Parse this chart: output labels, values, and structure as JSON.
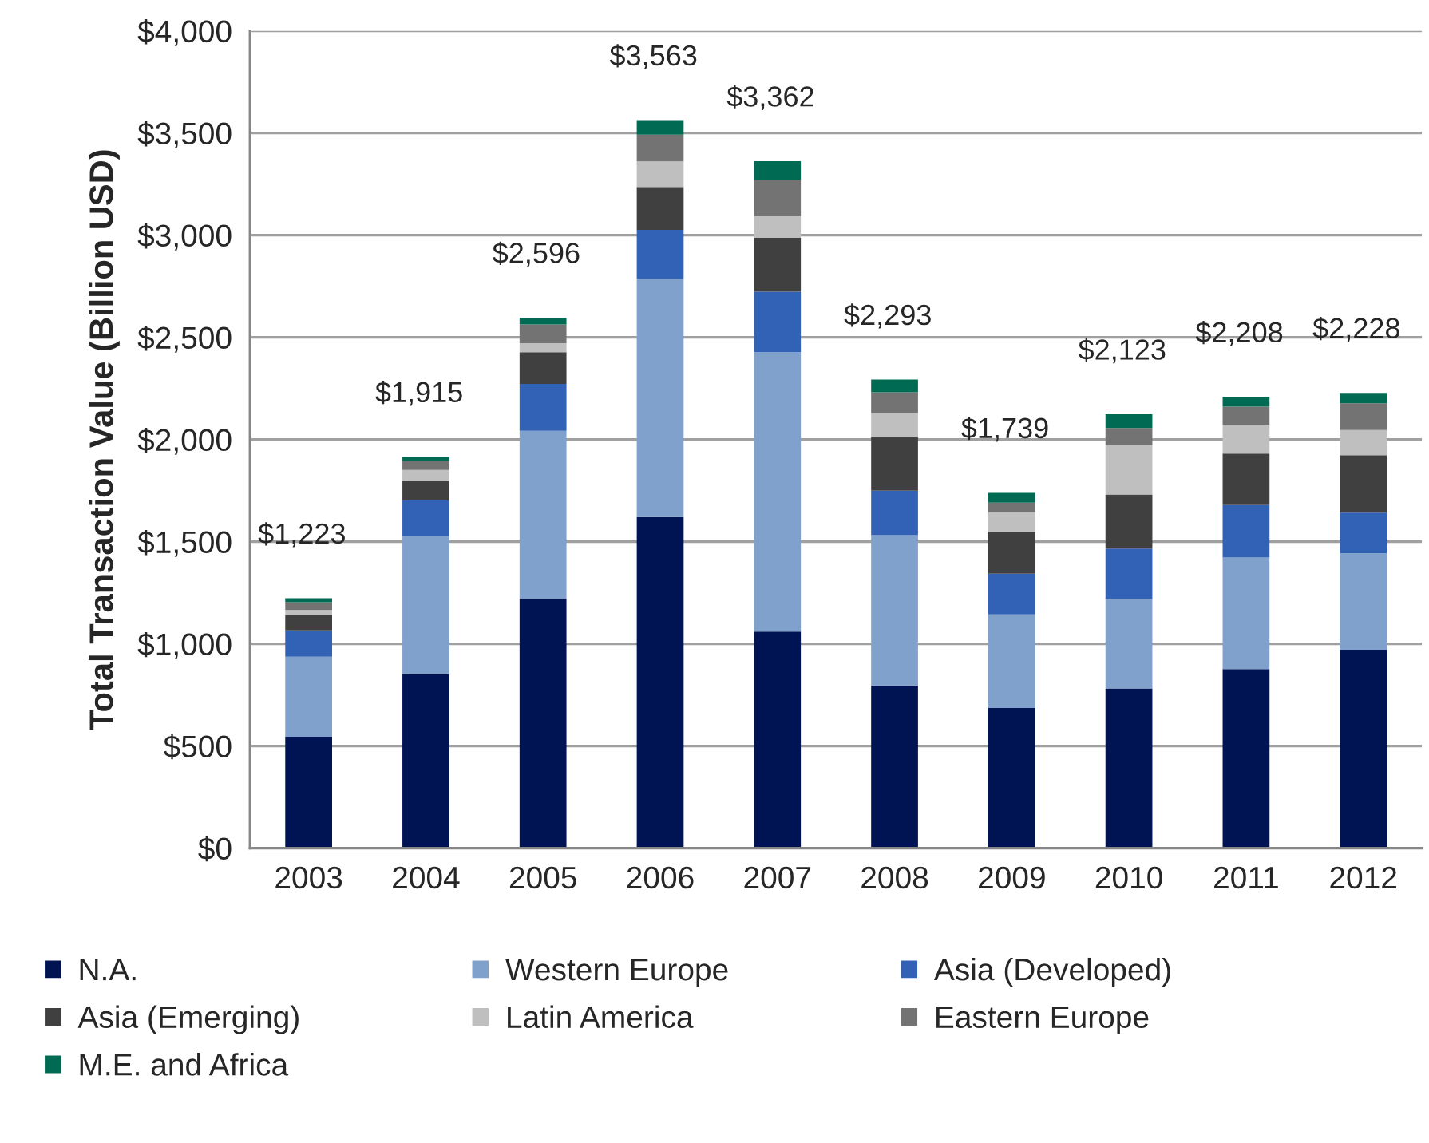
{
  "chart_data": {
    "type": "bar",
    "stacked": true,
    "ylabel": "Total Transaction Value (Billion USD)",
    "categories": [
      "2003",
      "2004",
      "2005",
      "2006",
      "2007",
      "2008",
      "2009",
      "2010",
      "2011",
      "2012"
    ],
    "series": [
      {
        "name": "N.A.",
        "color": "#001352",
        "values": [
          545,
          851,
          1220,
          1620,
          1060,
          796,
          686,
          782,
          876,
          971
        ]
      },
      {
        "name": "Western Europe",
        "color": "#7fa1cb",
        "values": [
          392,
          675,
          822,
          1166,
          1367,
          736,
          458,
          438,
          546,
          472
        ]
      },
      {
        "name": "Asia (Developed)",
        "color": "#3162b5",
        "values": [
          129,
          176,
          230,
          240,
          296,
          217,
          199,
          246,
          257,
          199
        ]
      },
      {
        "name": "Asia (Emerging)",
        "color": "#404040",
        "values": [
          73,
          97,
          155,
          210,
          264,
          262,
          207,
          265,
          252,
          281
        ]
      },
      {
        "name": "Latin America",
        "color": "#bfbfbf",
        "values": [
          26,
          52,
          44,
          125,
          107,
          117,
          94,
          241,
          141,
          123
        ]
      },
      {
        "name": "Eastern Europe",
        "color": "#737373",
        "values": [
          38,
          44,
          92,
          131,
          176,
          103,
          47,
          84,
          89,
          131
        ]
      },
      {
        "name": "M.E. and Africa",
        "color": "#006b52",
        "values": [
          20,
          20,
          33,
          71,
          92,
          62,
          48,
          67,
          47,
          51
        ]
      }
    ],
    "totals": [
      "$1,223",
      "$1,915",
      "$2,596",
      "$3,563",
      "$3,362",
      "$2,293",
      "$1,739",
      "$2,123",
      "$2,208",
      "$2,228"
    ],
    "ylim": [
      0,
      4000
    ],
    "yticks": [
      {
        "value": 0,
        "label": "$0"
      },
      {
        "value": 500,
        "label": "$500"
      },
      {
        "value": 1000,
        "label": "$1,000"
      },
      {
        "value": 1500,
        "label": "$1,500"
      },
      {
        "value": 2000,
        "label": "$2,000"
      },
      {
        "value": 2500,
        "label": "$2,500"
      },
      {
        "value": 3000,
        "label": "$3,000"
      },
      {
        "value": 3500,
        "label": "$3,500"
      },
      {
        "value": 4000,
        "label": "$4,000"
      }
    ],
    "grid": "y",
    "legend": "bottom"
  }
}
